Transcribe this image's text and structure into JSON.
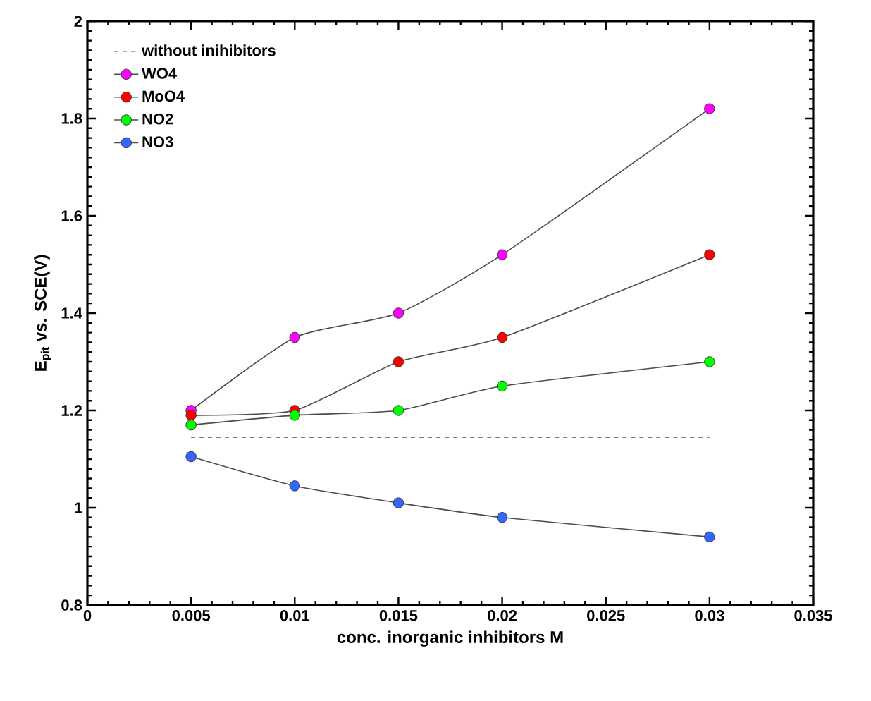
{
  "chart_data": {
    "type": "line",
    "xlabel": "conc. inorganic inhibitors  M",
    "ylabel": "E$_{pit}$ vs. SCE(V)",
    "xlim": [
      0,
      0.035
    ],
    "ylim": [
      0.8,
      2
    ],
    "xticks": [
      0,
      0.005,
      0.01,
      0.015,
      0.02,
      0.025,
      0.03,
      0.035
    ],
    "yticks": [
      0.8,
      1,
      1.2,
      1.4,
      1.6,
      1.8,
      2
    ],
    "x": [
      0.005,
      0.01,
      0.015,
      0.02,
      0.03
    ],
    "legend": "top left",
    "marker": "circle",
    "grid": false,
    "series": [
      {
        "name": "without inihibitors",
        "color": "#505050",
        "x": [
          0.005,
          0.03
        ],
        "values": [
          1.145,
          1.145
        ],
        "line_style": "dashed",
        "marker": "none"
      },
      {
        "name": "WO4",
        "color": "#ff00ff",
        "values": [
          1.2,
          1.35,
          1.4,
          1.52,
          1.82
        ]
      },
      {
        "name": "MoO4",
        "color": "#ff0000",
        "values": [
          1.19,
          1.2,
          1.3,
          1.35,
          1.52
        ]
      },
      {
        "name": "NO2",
        "color": "#00ff00",
        "values": [
          1.17,
          1.19,
          1.2,
          1.25,
          1.3
        ]
      },
      {
        "name": "NO3",
        "color": "#3366ff",
        "values": [
          1.105,
          1.045,
          1.01,
          0.98,
          0.94
        ]
      }
    ]
  }
}
